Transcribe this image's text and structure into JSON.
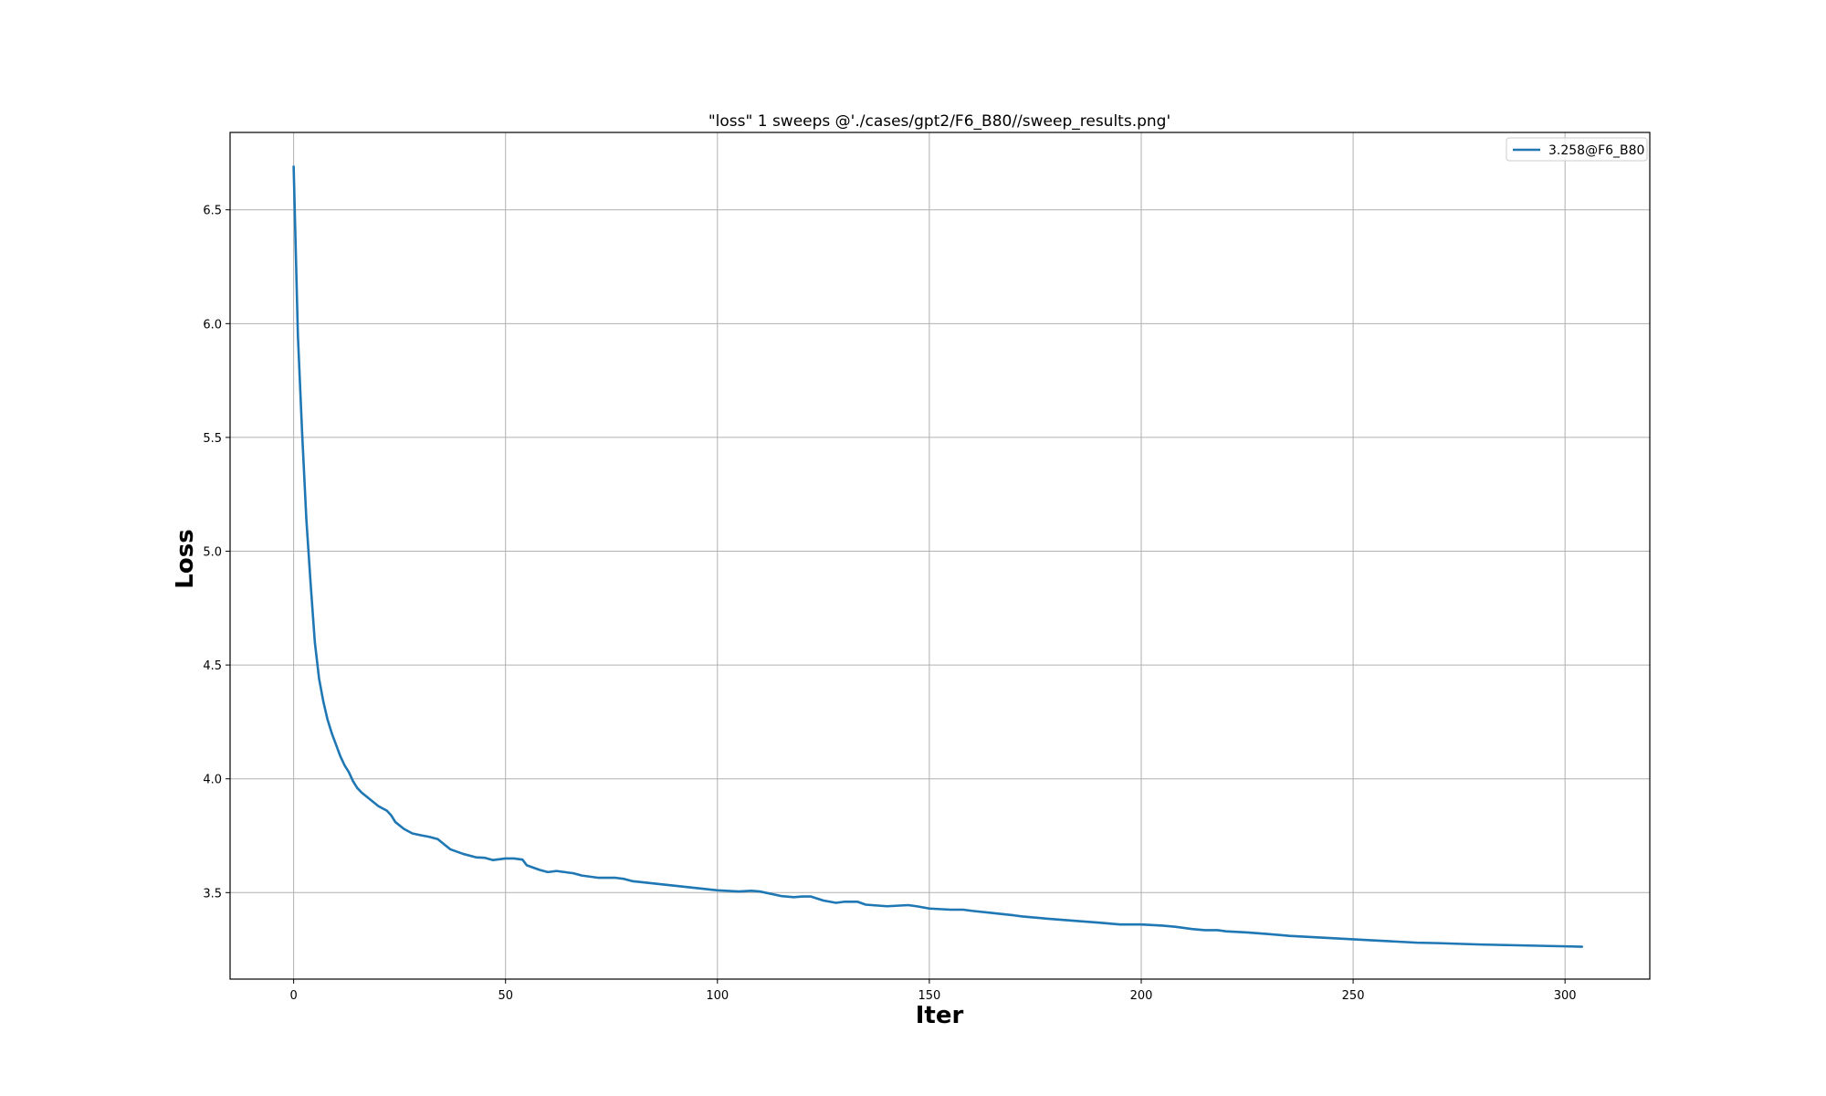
{
  "chart_data": {
    "type": "line",
    "title": "\"loss\" 1 sweeps @'./cases/gpt2/F6_B80//sweep_results.png'",
    "xlabel": "Iter",
    "ylabel": "Loss",
    "xlim": [
      -15,
      320
    ],
    "ylim": [
      3.12,
      6.84
    ],
    "xticks": [
      0,
      50,
      100,
      150,
      200,
      250,
      300
    ],
    "yticks": [
      3.5,
      4.0,
      4.5,
      5.0,
      5.5,
      6.0,
      6.5
    ],
    "xtick_labels": [
      "0",
      "50",
      "100",
      "150",
      "200",
      "250",
      "300"
    ],
    "ytick_labels": [
      "3.5",
      "4.0",
      "4.5",
      "5.0",
      "5.5",
      "6.0",
      "6.5"
    ],
    "grid": true,
    "legend_position": "upper right",
    "series": [
      {
        "name": "3.258@F6_B80",
        "color": "#1f77b4",
        "x": [
          0,
          1,
          2,
          3,
          4,
          5,
          6,
          7,
          8,
          9,
          10,
          11,
          12,
          13,
          14,
          15,
          16,
          17,
          18,
          19,
          20,
          22,
          23,
          24,
          26,
          28,
          30,
          32,
          34,
          35,
          37,
          40,
          43,
          45,
          47,
          50,
          52,
          54,
          55,
          58,
          60,
          62,
          66,
          68,
          72,
          76,
          78,
          80,
          85,
          90,
          95,
          100,
          105,
          108,
          110,
          115,
          118,
          120,
          122,
          125,
          128,
          130,
          133,
          135,
          140,
          145,
          147,
          150,
          155,
          158,
          160,
          165,
          170,
          172,
          178,
          185,
          190,
          195,
          200,
          205,
          208,
          212,
          215,
          218,
          220,
          225,
          230,
          235,
          240,
          245,
          250,
          255,
          260,
          265,
          270,
          275,
          280,
          285,
          290,
          295,
          300,
          304
        ],
        "y": [
          6.69,
          5.95,
          5.52,
          5.14,
          4.86,
          4.6,
          4.44,
          4.34,
          4.26,
          4.2,
          4.15,
          4.1,
          4.06,
          4.03,
          3.99,
          3.96,
          3.94,
          3.925,
          3.91,
          3.895,
          3.88,
          3.86,
          3.84,
          3.81,
          3.78,
          3.76,
          3.752,
          3.745,
          3.735,
          3.72,
          3.69,
          3.67,
          3.655,
          3.653,
          3.643,
          3.65,
          3.65,
          3.645,
          3.62,
          3.6,
          3.59,
          3.595,
          3.585,
          3.575,
          3.565,
          3.565,
          3.56,
          3.55,
          3.54,
          3.53,
          3.52,
          3.51,
          3.505,
          3.508,
          3.505,
          3.485,
          3.48,
          3.483,
          3.483,
          3.465,
          3.455,
          3.46,
          3.46,
          3.447,
          3.44,
          3.445,
          3.44,
          3.43,
          3.425,
          3.425,
          3.42,
          3.41,
          3.4,
          3.395,
          3.385,
          3.375,
          3.368,
          3.36,
          3.36,
          3.355,
          3.35,
          3.34,
          3.335,
          3.335,
          3.33,
          3.325,
          3.318,
          3.31,
          3.305,
          3.3,
          3.295,
          3.29,
          3.285,
          3.28,
          3.278,
          3.275,
          3.272,
          3.27,
          3.268,
          3.266,
          3.264,
          3.262
        ]
      }
    ]
  }
}
